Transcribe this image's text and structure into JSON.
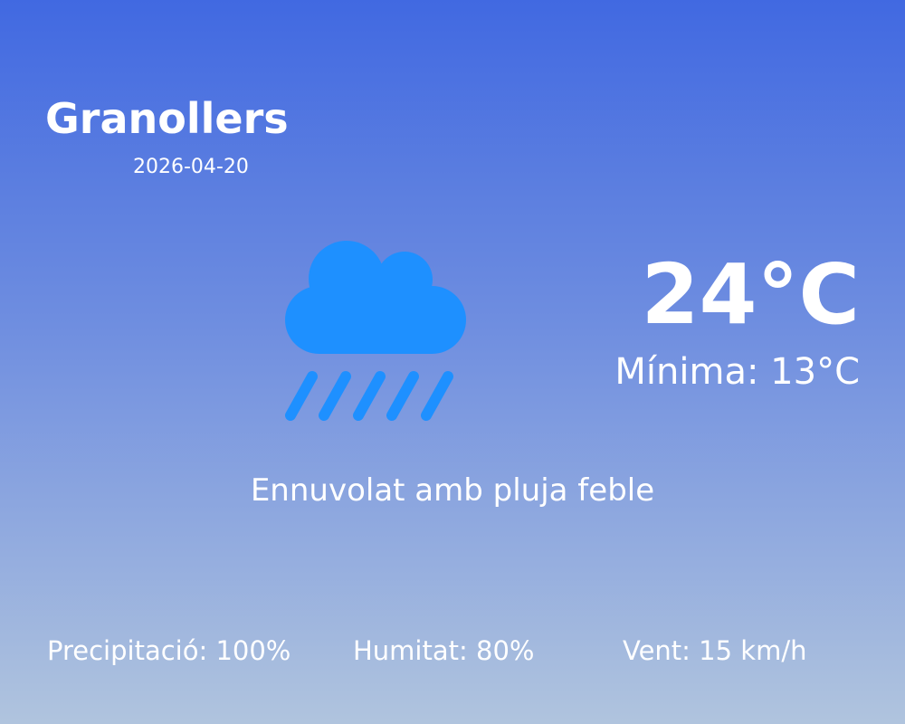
{
  "location": {
    "city": "Granollers",
    "date": "2026-04-20"
  },
  "current": {
    "temperature": "24°C",
    "minimum": "Mínima: 13°C",
    "description": "Ennuvolat amb pluja feble",
    "icon": "cloud-rain-icon"
  },
  "stats": {
    "precipitation": "Precipitació: 100%",
    "humidity": "Humitat: 80%",
    "wind": "Vent: 15 km/h"
  },
  "colors": {
    "gradient_top": "#4169e1",
    "gradient_bottom": "#b0c4de",
    "icon": "#1e90ff",
    "text": "#ffffff"
  }
}
